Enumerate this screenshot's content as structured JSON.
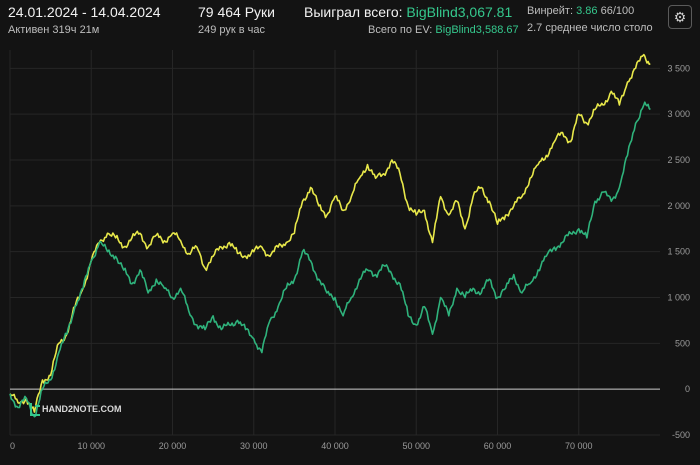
{
  "header": {
    "date_range": "24.01.2024 - 14.04.2024",
    "active_time": "Активен 319ч 21м",
    "hands_count": "79 464 Руки",
    "hands_per_hour": "249 рук в час",
    "won_label": "Выиграл всего:",
    "won_value": "BigBlind3,067.81",
    "ev_label": "Всего по EV:",
    "ev_value": "BigBlind3,588.67",
    "winrate_label": "Винрейт:",
    "winrate_value": "3.86",
    "winrate_unit": "66/100",
    "avg_tables": "2.7 среднее число столо",
    "settings_icon": "gear-icon"
  },
  "logo": {
    "text": "HAND2NOTE.COM"
  },
  "colors": {
    "background": "#131313",
    "ev_line": "#e8e84a",
    "won_line": "#2fb37c",
    "accent": "#35c88d",
    "zero_line": "#cfcfcf"
  },
  "chart_data": {
    "type": "line",
    "xlim": [
      0,
      80000
    ],
    "ylim": [
      -500,
      3700
    ],
    "x_ticks": [
      0,
      10000,
      20000,
      30000,
      40000,
      50000,
      60000,
      70000
    ],
    "x_tick_labels": [
      "0",
      "10 000",
      "20 000",
      "30 000",
      "40 000",
      "50 000",
      "60 000",
      "70 000"
    ],
    "y_ticks": [
      -500,
      0,
      500,
      1000,
      1500,
      2000,
      2500,
      3000,
      3500
    ],
    "y_tick_labels": [
      "-500",
      "0",
      "500",
      "1 000",
      "1 500",
      "2 000",
      "2 500",
      "3 000",
      "3 500"
    ],
    "grid": true,
    "series": [
      {
        "color": "#e8e84a",
        "points": [
          [
            0,
            -50
          ],
          [
            1000,
            -150
          ],
          [
            2000,
            -100
          ],
          [
            3000,
            -250
          ],
          [
            4000,
            100
          ],
          [
            5000,
            150
          ],
          [
            6000,
            500
          ],
          [
            7000,
            600
          ],
          [
            8000,
            900
          ],
          [
            9000,
            1100
          ],
          [
            10000,
            1400
          ],
          [
            11000,
            1600
          ],
          [
            12000,
            1700
          ],
          [
            13000,
            1650
          ],
          [
            14000,
            1550
          ],
          [
            15000,
            1650
          ],
          [
            16000,
            1700
          ],
          [
            17000,
            1550
          ],
          [
            18000,
            1680
          ],
          [
            19000,
            1620
          ],
          [
            20000,
            1700
          ],
          [
            21000,
            1620
          ],
          [
            22000,
            1480
          ],
          [
            23000,
            1550
          ],
          [
            24000,
            1320
          ],
          [
            25000,
            1450
          ],
          [
            26000,
            1550
          ],
          [
            27000,
            1600
          ],
          [
            28000,
            1480
          ],
          [
            29000,
            1450
          ],
          [
            30000,
            1500
          ],
          [
            31000,
            1550
          ],
          [
            32000,
            1450
          ],
          [
            33000,
            1550
          ],
          [
            34000,
            1600
          ],
          [
            35000,
            1700
          ],
          [
            36000,
            2050
          ],
          [
            37000,
            2200
          ],
          [
            38000,
            2000
          ],
          [
            39000,
            1900
          ],
          [
            40000,
            2100
          ],
          [
            41000,
            1950
          ],
          [
            42000,
            2100
          ],
          [
            43000,
            2300
          ],
          [
            44000,
            2450
          ],
          [
            45000,
            2300
          ],
          [
            46000,
            2350
          ],
          [
            47000,
            2500
          ],
          [
            48000,
            2350
          ],
          [
            49000,
            2000
          ],
          [
            50000,
            1900
          ],
          [
            51000,
            1950
          ],
          [
            52000,
            1600
          ],
          [
            53000,
            2100
          ],
          [
            54000,
            1900
          ],
          [
            55000,
            2050
          ],
          [
            56000,
            1750
          ],
          [
            57000,
            2100
          ],
          [
            58000,
            2200
          ],
          [
            59000,
            2050
          ],
          [
            60000,
            1800
          ],
          [
            61000,
            1900
          ],
          [
            62000,
            2000
          ],
          [
            63000,
            2100
          ],
          [
            64000,
            2300
          ],
          [
            65000,
            2450
          ],
          [
            66000,
            2550
          ],
          [
            67000,
            2700
          ],
          [
            68000,
            2800
          ],
          [
            69000,
            2700
          ],
          [
            70000,
            3000
          ],
          [
            71000,
            2900
          ],
          [
            72000,
            3050
          ],
          [
            73000,
            3100
          ],
          [
            74000,
            3250
          ],
          [
            75000,
            3100
          ],
          [
            76000,
            3350
          ],
          [
            77000,
            3500
          ],
          [
            78000,
            3650
          ],
          [
            78800,
            3550
          ]
        ]
      },
      {
        "color": "#2fb37c",
        "points": [
          [
            0,
            -50
          ],
          [
            1000,
            -200
          ],
          [
            2000,
            -100
          ],
          [
            3000,
            -300
          ],
          [
            4000,
            0
          ],
          [
            5000,
            100
          ],
          [
            6000,
            400
          ],
          [
            7000,
            600
          ],
          [
            8000,
            900
          ],
          [
            9000,
            1100
          ],
          [
            10000,
            1400
          ],
          [
            11000,
            1600
          ],
          [
            12000,
            1500
          ],
          [
            13000,
            1450
          ],
          [
            14000,
            1300
          ],
          [
            15000,
            1150
          ],
          [
            16000,
            1300
          ],
          [
            17000,
            1050
          ],
          [
            18000,
            1200
          ],
          [
            19000,
            1100
          ],
          [
            20000,
            1000
          ],
          [
            21000,
            1100
          ],
          [
            22000,
            850
          ],
          [
            23000,
            700
          ],
          [
            24000,
            650
          ],
          [
            25000,
            800
          ],
          [
            26000,
            650
          ],
          [
            27000,
            700
          ],
          [
            28000,
            750
          ],
          [
            29000,
            650
          ],
          [
            30000,
            550
          ],
          [
            31000,
            400
          ],
          [
            32000,
            750
          ],
          [
            33000,
            900
          ],
          [
            34000,
            1100
          ],
          [
            35000,
            1200
          ],
          [
            36000,
            1500
          ],
          [
            37000,
            1400
          ],
          [
            38000,
            1200
          ],
          [
            39000,
            1050
          ],
          [
            40000,
            1000
          ],
          [
            41000,
            800
          ],
          [
            42000,
            1000
          ],
          [
            43000,
            1200
          ],
          [
            44000,
            1300
          ],
          [
            45000,
            1250
          ],
          [
            46000,
            1350
          ],
          [
            47000,
            1250
          ],
          [
            48000,
            1150
          ],
          [
            49000,
            800
          ],
          [
            50000,
            700
          ],
          [
            51000,
            900
          ],
          [
            52000,
            600
          ],
          [
            53000,
            1000
          ],
          [
            54000,
            800
          ],
          [
            55000,
            1100
          ],
          [
            56000,
            1000
          ],
          [
            57000,
            1100
          ],
          [
            58000,
            1050
          ],
          [
            59000,
            1200
          ],
          [
            60000,
            1000
          ],
          [
            61000,
            1100
          ],
          [
            62000,
            1250
          ],
          [
            63000,
            1050
          ],
          [
            64000,
            1150
          ],
          [
            65000,
            1300
          ],
          [
            66000,
            1450
          ],
          [
            67000,
            1550
          ],
          [
            68000,
            1600
          ],
          [
            69000,
            1700
          ],
          [
            70000,
            1750
          ],
          [
            71000,
            1650
          ],
          [
            72000,
            2050
          ],
          [
            73000,
            2150
          ],
          [
            74000,
            2050
          ],
          [
            75000,
            2200
          ],
          [
            76000,
            2550
          ],
          [
            77000,
            2900
          ],
          [
            78000,
            3100
          ],
          [
            78800,
            3050
          ]
        ]
      }
    ]
  }
}
